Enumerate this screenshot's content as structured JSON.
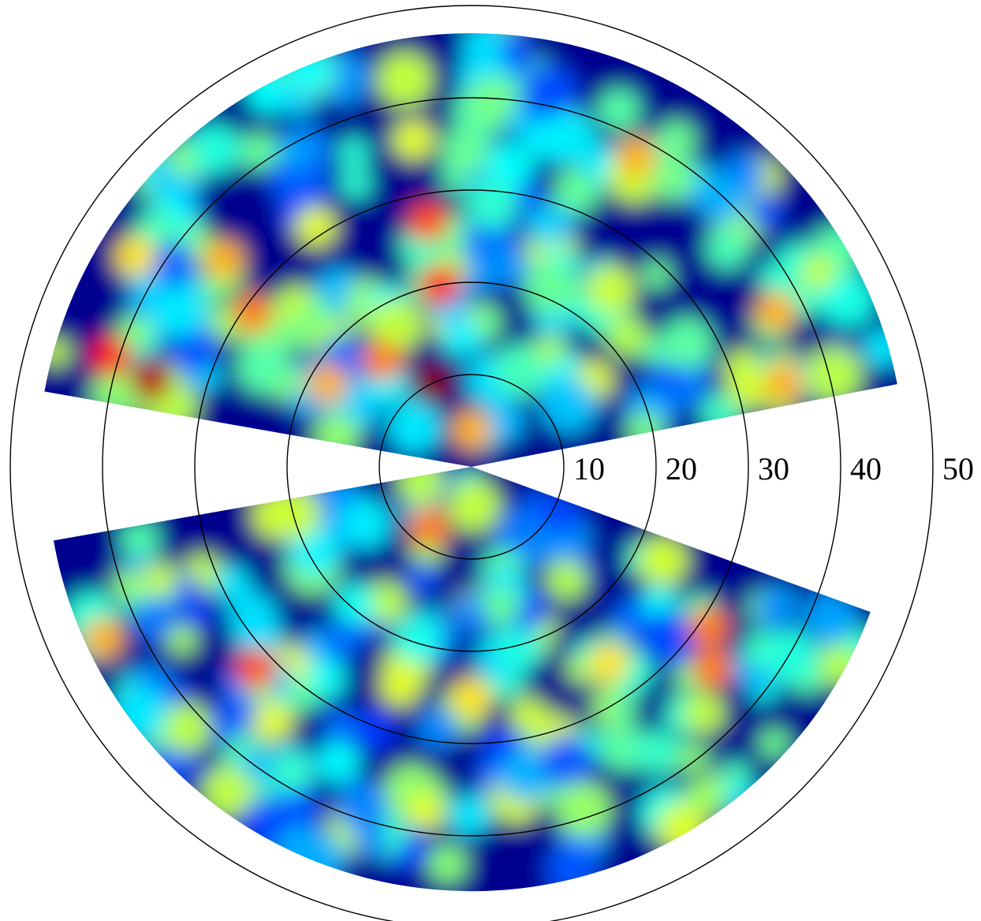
{
  "chart_data": {
    "type": "heatmap",
    "projection": "polar",
    "title": "",
    "xlabel": "",
    "ylabel": "",
    "radial_axis": {
      "min": 0,
      "max": 50,
      "ticks": [
        10,
        20,
        30,
        40,
        50
      ],
      "tick_labels": [
        "10",
        "20",
        "30",
        "40",
        "50"
      ],
      "grid": true
    },
    "colormap": "jet",
    "colors": {
      "low": "#00008f",
      "mid_low": "#00ffff",
      "mid": "#ffff00",
      "mid_high": "#ff7f00",
      "high": "#800000",
      "grid": "#000000",
      "background": "#ffffff"
    },
    "coverage": {
      "upper_sector": {
        "theta_min_deg": 11,
        "theta_max_deg": 170,
        "r_min": 0,
        "r_max": 47
      },
      "lower_sector": {
        "theta_min_deg": 190,
        "theta_max_deg": 340,
        "r_min": 0,
        "r_max": 46
      }
    },
    "hotspots": [
      {
        "r": 10,
        "theta_deg": 115,
        "intensity": 1.0
      },
      {
        "r": 4,
        "theta_deg": 90,
        "intensity": 0.7
      },
      {
        "r": 20,
        "theta_deg": 100,
        "intensity": 0.85
      },
      {
        "r": 27,
        "theta_deg": 100,
        "intensity": 0.8
      },
      {
        "r": 36,
        "theta_deg": 100,
        "intensity": 0.6
      },
      {
        "r": 15,
        "theta_deg": 130,
        "intensity": 0.75
      },
      {
        "r": 18,
        "theta_deg": 150,
        "intensity": 0.7
      },
      {
        "r": 36,
        "theta_deg": 165,
        "intensity": 0.95
      },
      {
        "r": 41,
        "theta_deg": 163,
        "intensity": 0.85
      },
      {
        "r": 29,
        "theta_deg": 145,
        "intensity": 0.75
      },
      {
        "r": 35,
        "theta_deg": 140,
        "intensity": 0.7
      },
      {
        "r": 43,
        "theta_deg": 148,
        "intensity": 0.65
      },
      {
        "r": 31,
        "theta_deg": 123,
        "intensity": 0.6
      },
      {
        "r": 38,
        "theta_deg": 62,
        "intensity": 0.7
      },
      {
        "r": 37,
        "theta_deg": 27,
        "intensity": 0.7
      },
      {
        "r": 35,
        "theta_deg": 15,
        "intensity": 0.7
      },
      {
        "r": 22,
        "theta_deg": 40,
        "intensity": 0.55
      },
      {
        "r": 8,
        "theta_deg": 235,
        "intensity": 0.75
      },
      {
        "r": 25,
        "theta_deg": 270,
        "intensity": 0.65
      },
      {
        "r": 25,
        "theta_deg": 252,
        "intensity": 0.6
      },
      {
        "r": 32,
        "theta_deg": 223,
        "intensity": 0.8
      },
      {
        "r": 44,
        "theta_deg": 205,
        "intensity": 0.7
      },
      {
        "r": 26,
        "theta_deg": 305,
        "intensity": 0.65
      },
      {
        "r": 31,
        "theta_deg": 326,
        "intensity": 0.75
      },
      {
        "r": 34,
        "theta_deg": 320,
        "intensity": 0.75
      },
      {
        "r": 35,
        "theta_deg": 232,
        "intensity": 0.6
      },
      {
        "r": 16,
        "theta_deg": 310,
        "intensity": 0.55
      }
    ]
  }
}
